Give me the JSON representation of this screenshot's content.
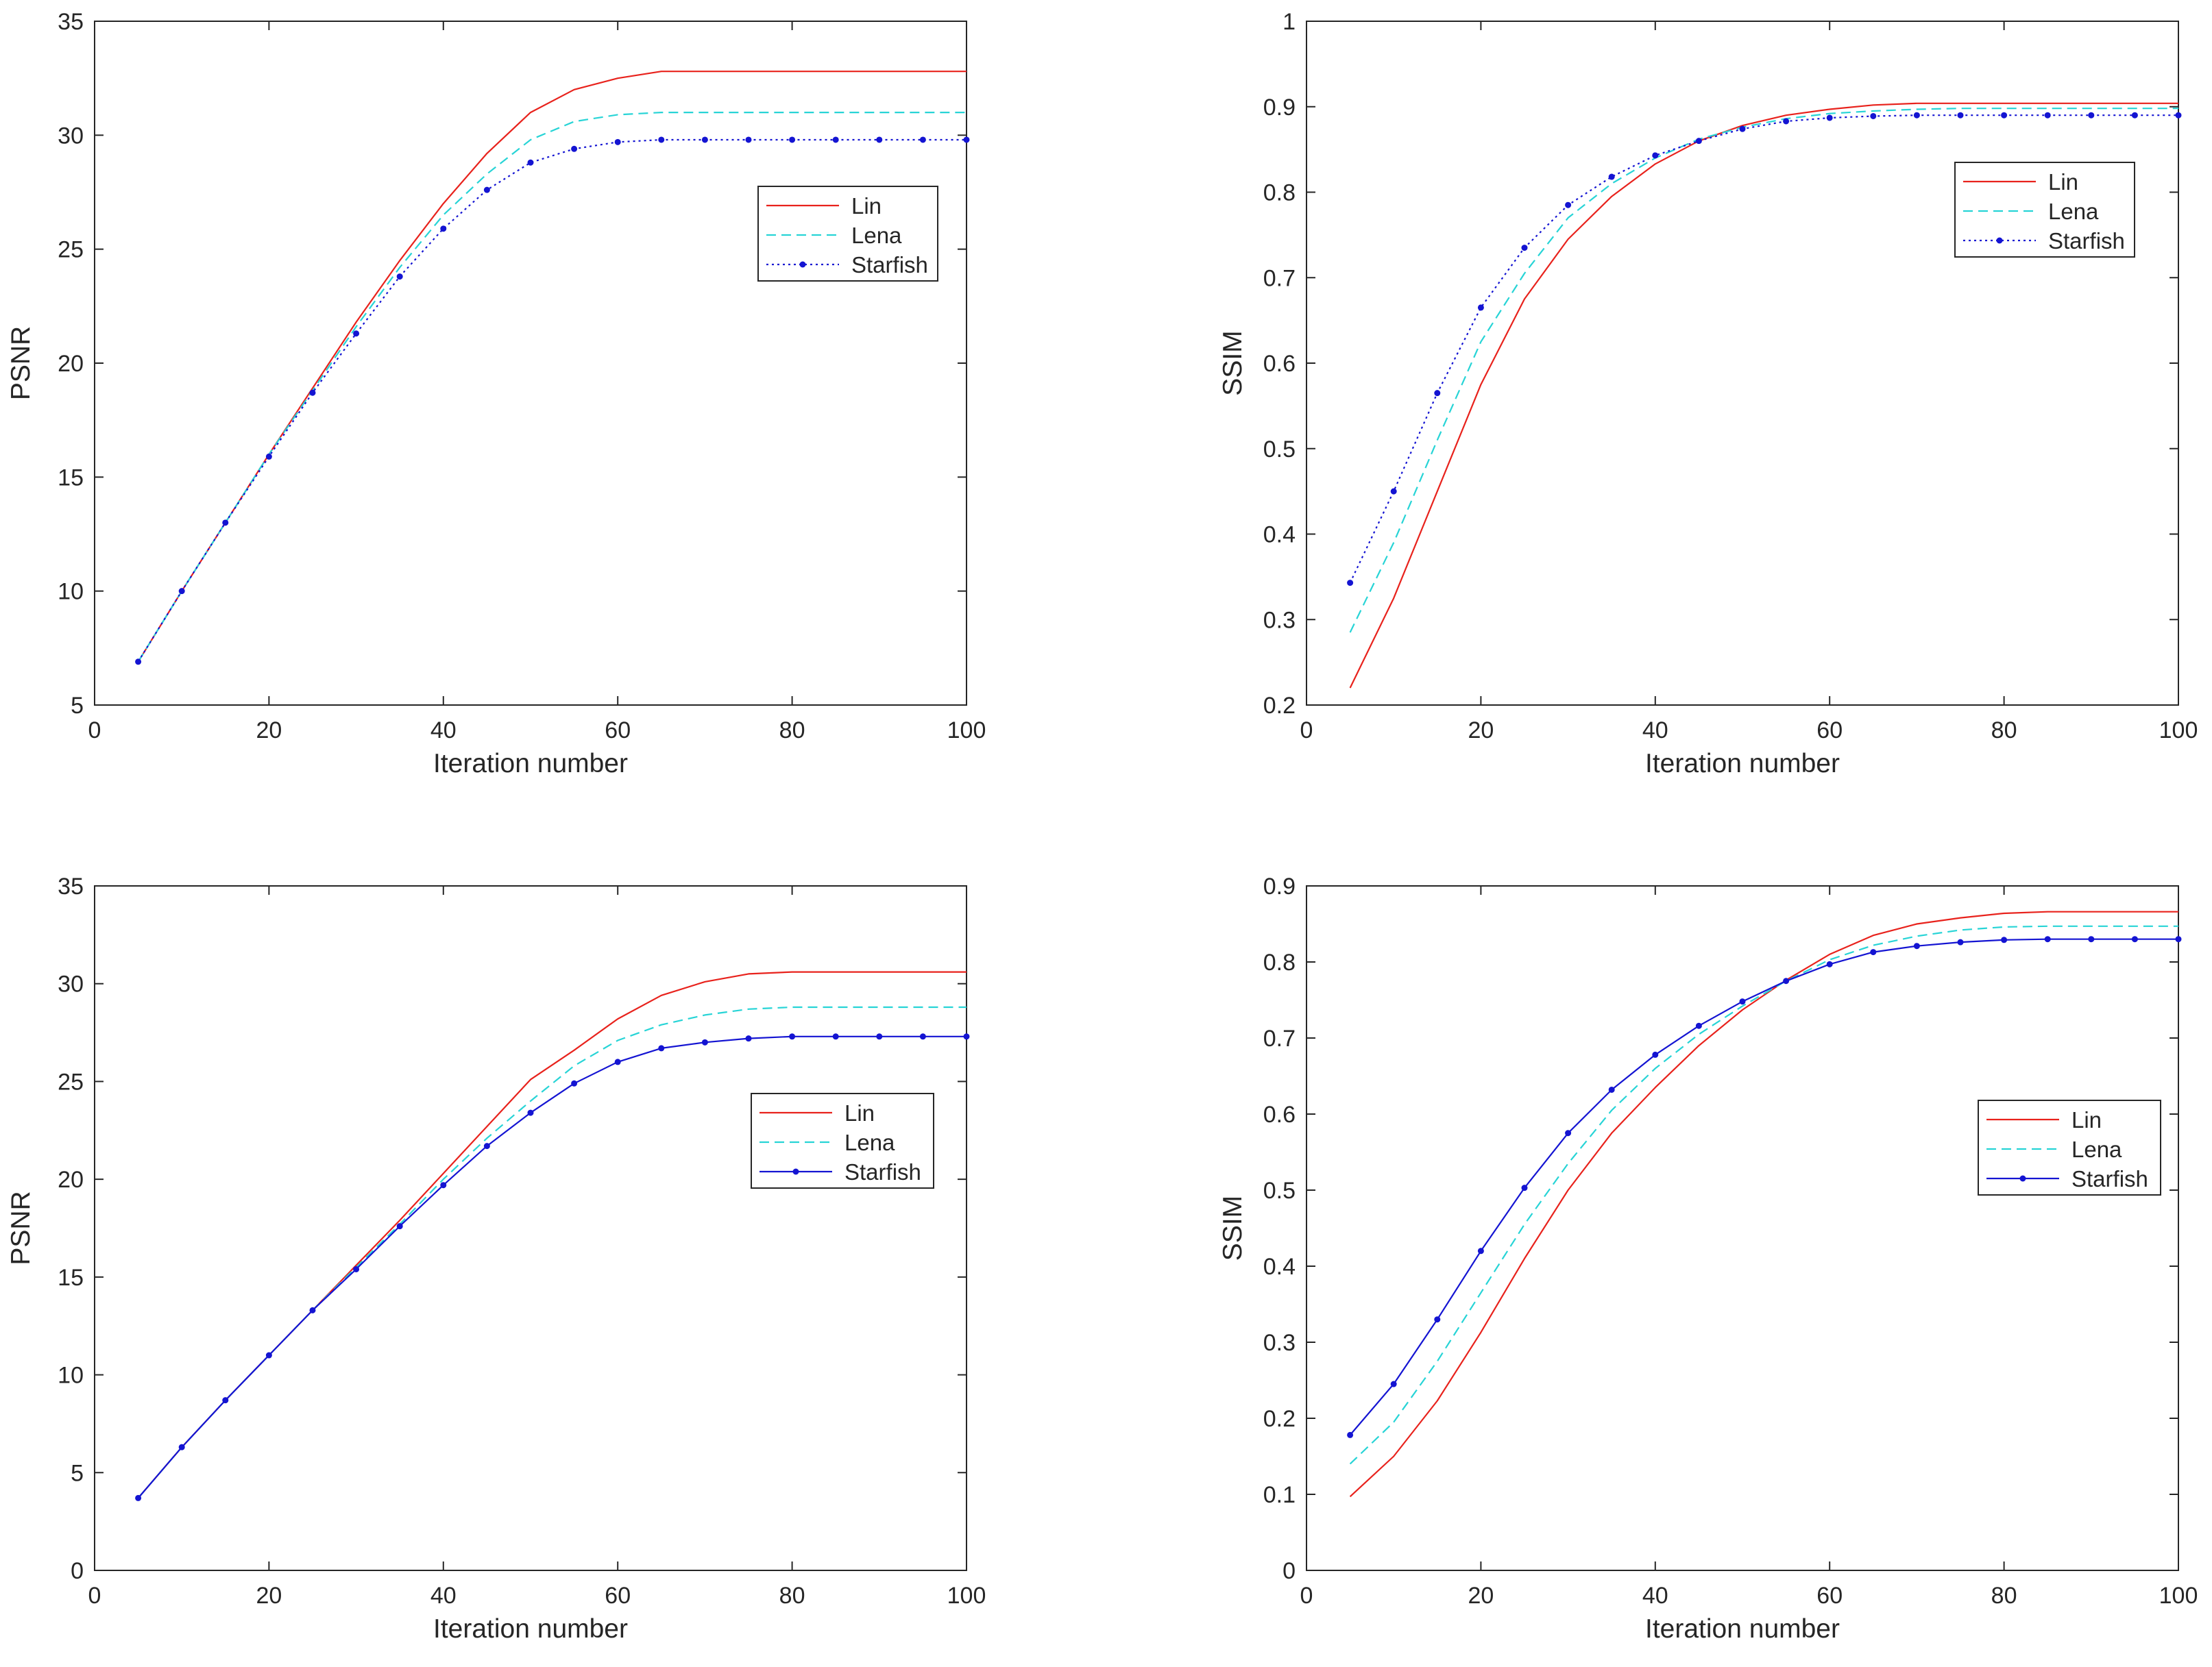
{
  "colors": {
    "Lin": "#e8221c",
    "Lena": "#27d4d6",
    "Starfish": "#1414d2",
    "axis": "#262626",
    "tick": "#262626"
  },
  "chart_data": [
    {
      "type": "line",
      "xlabel": "Iteration number",
      "ylabel": "PSNR",
      "xlim": [
        0,
        100
      ],
      "ylim": [
        5,
        35
      ],
      "xticks": [
        0,
        20,
        40,
        60,
        80,
        100
      ],
      "yticks": [
        5,
        10,
        15,
        20,
        25,
        30,
        35
      ],
      "legend_position": "right",
      "x": [
        5,
        10,
        15,
        20,
        25,
        30,
        35,
        40,
        45,
        50,
        55,
        60,
        65,
        70,
        75,
        80,
        85,
        90,
        95,
        100
      ],
      "series": [
        {
          "name": "Lin",
          "style": "solid",
          "markers": false,
          "values": [
            6.9,
            10.0,
            13.0,
            16.0,
            18.9,
            21.8,
            24.5,
            27.0,
            29.2,
            31.0,
            32.0,
            32.5,
            32.8,
            32.8,
            32.8,
            32.8,
            32.8,
            32.8,
            32.8,
            32.8
          ]
        },
        {
          "name": "Lena",
          "style": "dashed",
          "markers": false,
          "values": [
            6.9,
            10.0,
            13.0,
            16.0,
            18.8,
            21.6,
            24.2,
            26.5,
            28.3,
            29.8,
            30.6,
            30.9,
            31.0,
            31.0,
            31.0,
            31.0,
            31.0,
            31.0,
            31.0,
            31.0
          ]
        },
        {
          "name": "Starfish",
          "style": "dotted",
          "markers": true,
          "values": [
            6.9,
            10.0,
            13.0,
            15.9,
            18.7,
            21.3,
            23.8,
            25.9,
            27.6,
            28.8,
            29.4,
            29.7,
            29.8,
            29.8,
            29.8,
            29.8,
            29.8,
            29.8,
            29.8,
            29.8
          ]
        }
      ]
    },
    {
      "type": "line",
      "xlabel": "Iteration number",
      "ylabel": "SSIM",
      "xlim": [
        0,
        100
      ],
      "ylim": [
        0.2,
        1
      ],
      "xticks": [
        0,
        20,
        40,
        60,
        80,
        100
      ],
      "yticks": [
        0.2,
        0.3,
        0.4,
        0.5,
        0.6,
        0.7,
        0.8,
        0.9,
        1
      ],
      "legend_position": "right",
      "x": [
        5,
        10,
        15,
        20,
        25,
        30,
        35,
        40,
        45,
        50,
        55,
        60,
        65,
        70,
        75,
        80,
        85,
        90,
        95,
        100
      ],
      "series": [
        {
          "name": "Lin",
          "style": "solid",
          "markers": false,
          "values": [
            0.22,
            0.325,
            0.45,
            0.575,
            0.675,
            0.745,
            0.795,
            0.833,
            0.86,
            0.878,
            0.89,
            0.897,
            0.902,
            0.904,
            0.904,
            0.904,
            0.904,
            0.904,
            0.904,
            0.904
          ]
        },
        {
          "name": "Lena",
          "style": "dashed",
          "markers": false,
          "values": [
            0.285,
            0.39,
            0.51,
            0.625,
            0.705,
            0.77,
            0.81,
            0.84,
            0.862,
            0.876,
            0.886,
            0.892,
            0.895,
            0.897,
            0.898,
            0.898,
            0.898,
            0.898,
            0.898,
            0.898
          ]
        },
        {
          "name": "Starfish",
          "style": "dotted",
          "markers": true,
          "values": [
            0.343,
            0.45,
            0.565,
            0.665,
            0.735,
            0.785,
            0.818,
            0.843,
            0.86,
            0.874,
            0.883,
            0.887,
            0.889,
            0.89,
            0.89,
            0.89,
            0.89,
            0.89,
            0.89,
            0.89
          ]
        }
      ]
    },
    {
      "type": "line",
      "xlabel": "Iteration number",
      "ylabel": "PSNR",
      "xlim": [
        0,
        100
      ],
      "ylim": [
        0,
        35
      ],
      "xticks": [
        0,
        20,
        40,
        60,
        80,
        100
      ],
      "yticks": [
        0,
        5,
        10,
        15,
        20,
        25,
        30,
        35
      ],
      "legend_position": "right",
      "x": [
        5,
        10,
        15,
        20,
        25,
        30,
        35,
        40,
        45,
        50,
        55,
        60,
        65,
        70,
        75,
        80,
        85,
        90,
        95,
        100
      ],
      "series": [
        {
          "name": "Lin",
          "style": "solid",
          "markers": false,
          "values": [
            3.7,
            6.3,
            8.7,
            11.0,
            13.3,
            15.6,
            17.9,
            20.3,
            22.7,
            25.1,
            26.6,
            28.2,
            29.4,
            30.1,
            30.5,
            30.6,
            30.6,
            30.6,
            30.6,
            30.6
          ]
        },
        {
          "name": "Lena",
          "style": "dashed",
          "markers": false,
          "values": [
            3.7,
            6.3,
            8.7,
            11.0,
            13.3,
            15.5,
            17.7,
            20.0,
            22.1,
            24.0,
            25.8,
            27.1,
            27.9,
            28.4,
            28.7,
            28.8,
            28.8,
            28.8,
            28.8,
            28.8
          ]
        },
        {
          "name": "Starfish",
          "style": "solid",
          "markers": true,
          "values": [
            3.7,
            6.3,
            8.7,
            11.0,
            13.3,
            15.4,
            17.6,
            19.7,
            21.7,
            23.4,
            24.9,
            26.0,
            26.7,
            27.0,
            27.2,
            27.3,
            27.3,
            27.3,
            27.3,
            27.3
          ]
        }
      ]
    },
    {
      "type": "line",
      "xlabel": "Iteration number",
      "ylabel": "SSIM",
      "xlim": [
        0,
        100
      ],
      "ylim": [
        0,
        0.9
      ],
      "xticks": [
        0,
        20,
        40,
        60,
        80,
        100
      ],
      "yticks": [
        0,
        0.1,
        0.2,
        0.3,
        0.4,
        0.5,
        0.6,
        0.7,
        0.8,
        0.9
      ],
      "legend_position": "right",
      "x": [
        5,
        10,
        15,
        20,
        25,
        30,
        35,
        40,
        45,
        50,
        55,
        60,
        65,
        70,
        75,
        80,
        85,
        90,
        95,
        100
      ],
      "series": [
        {
          "name": "Lin",
          "style": "solid",
          "markers": false,
          "values": [
            0.097,
            0.15,
            0.223,
            0.313,
            0.41,
            0.5,
            0.575,
            0.635,
            0.69,
            0.737,
            0.776,
            0.81,
            0.835,
            0.85,
            0.858,
            0.864,
            0.866,
            0.866,
            0.866,
            0.866
          ]
        },
        {
          "name": "Lena",
          "style": "dashed",
          "markers": false,
          "values": [
            0.14,
            0.195,
            0.275,
            0.365,
            0.455,
            0.535,
            0.605,
            0.66,
            0.705,
            0.742,
            0.775,
            0.803,
            0.822,
            0.834,
            0.842,
            0.846,
            0.847,
            0.847,
            0.847,
            0.847
          ]
        },
        {
          "name": "Starfish",
          "style": "solid",
          "markers": true,
          "values": [
            0.178,
            0.245,
            0.33,
            0.42,
            0.503,
            0.575,
            0.632,
            0.678,
            0.716,
            0.748,
            0.775,
            0.797,
            0.813,
            0.821,
            0.826,
            0.829,
            0.83,
            0.83,
            0.83,
            0.83
          ]
        }
      ]
    }
  ]
}
